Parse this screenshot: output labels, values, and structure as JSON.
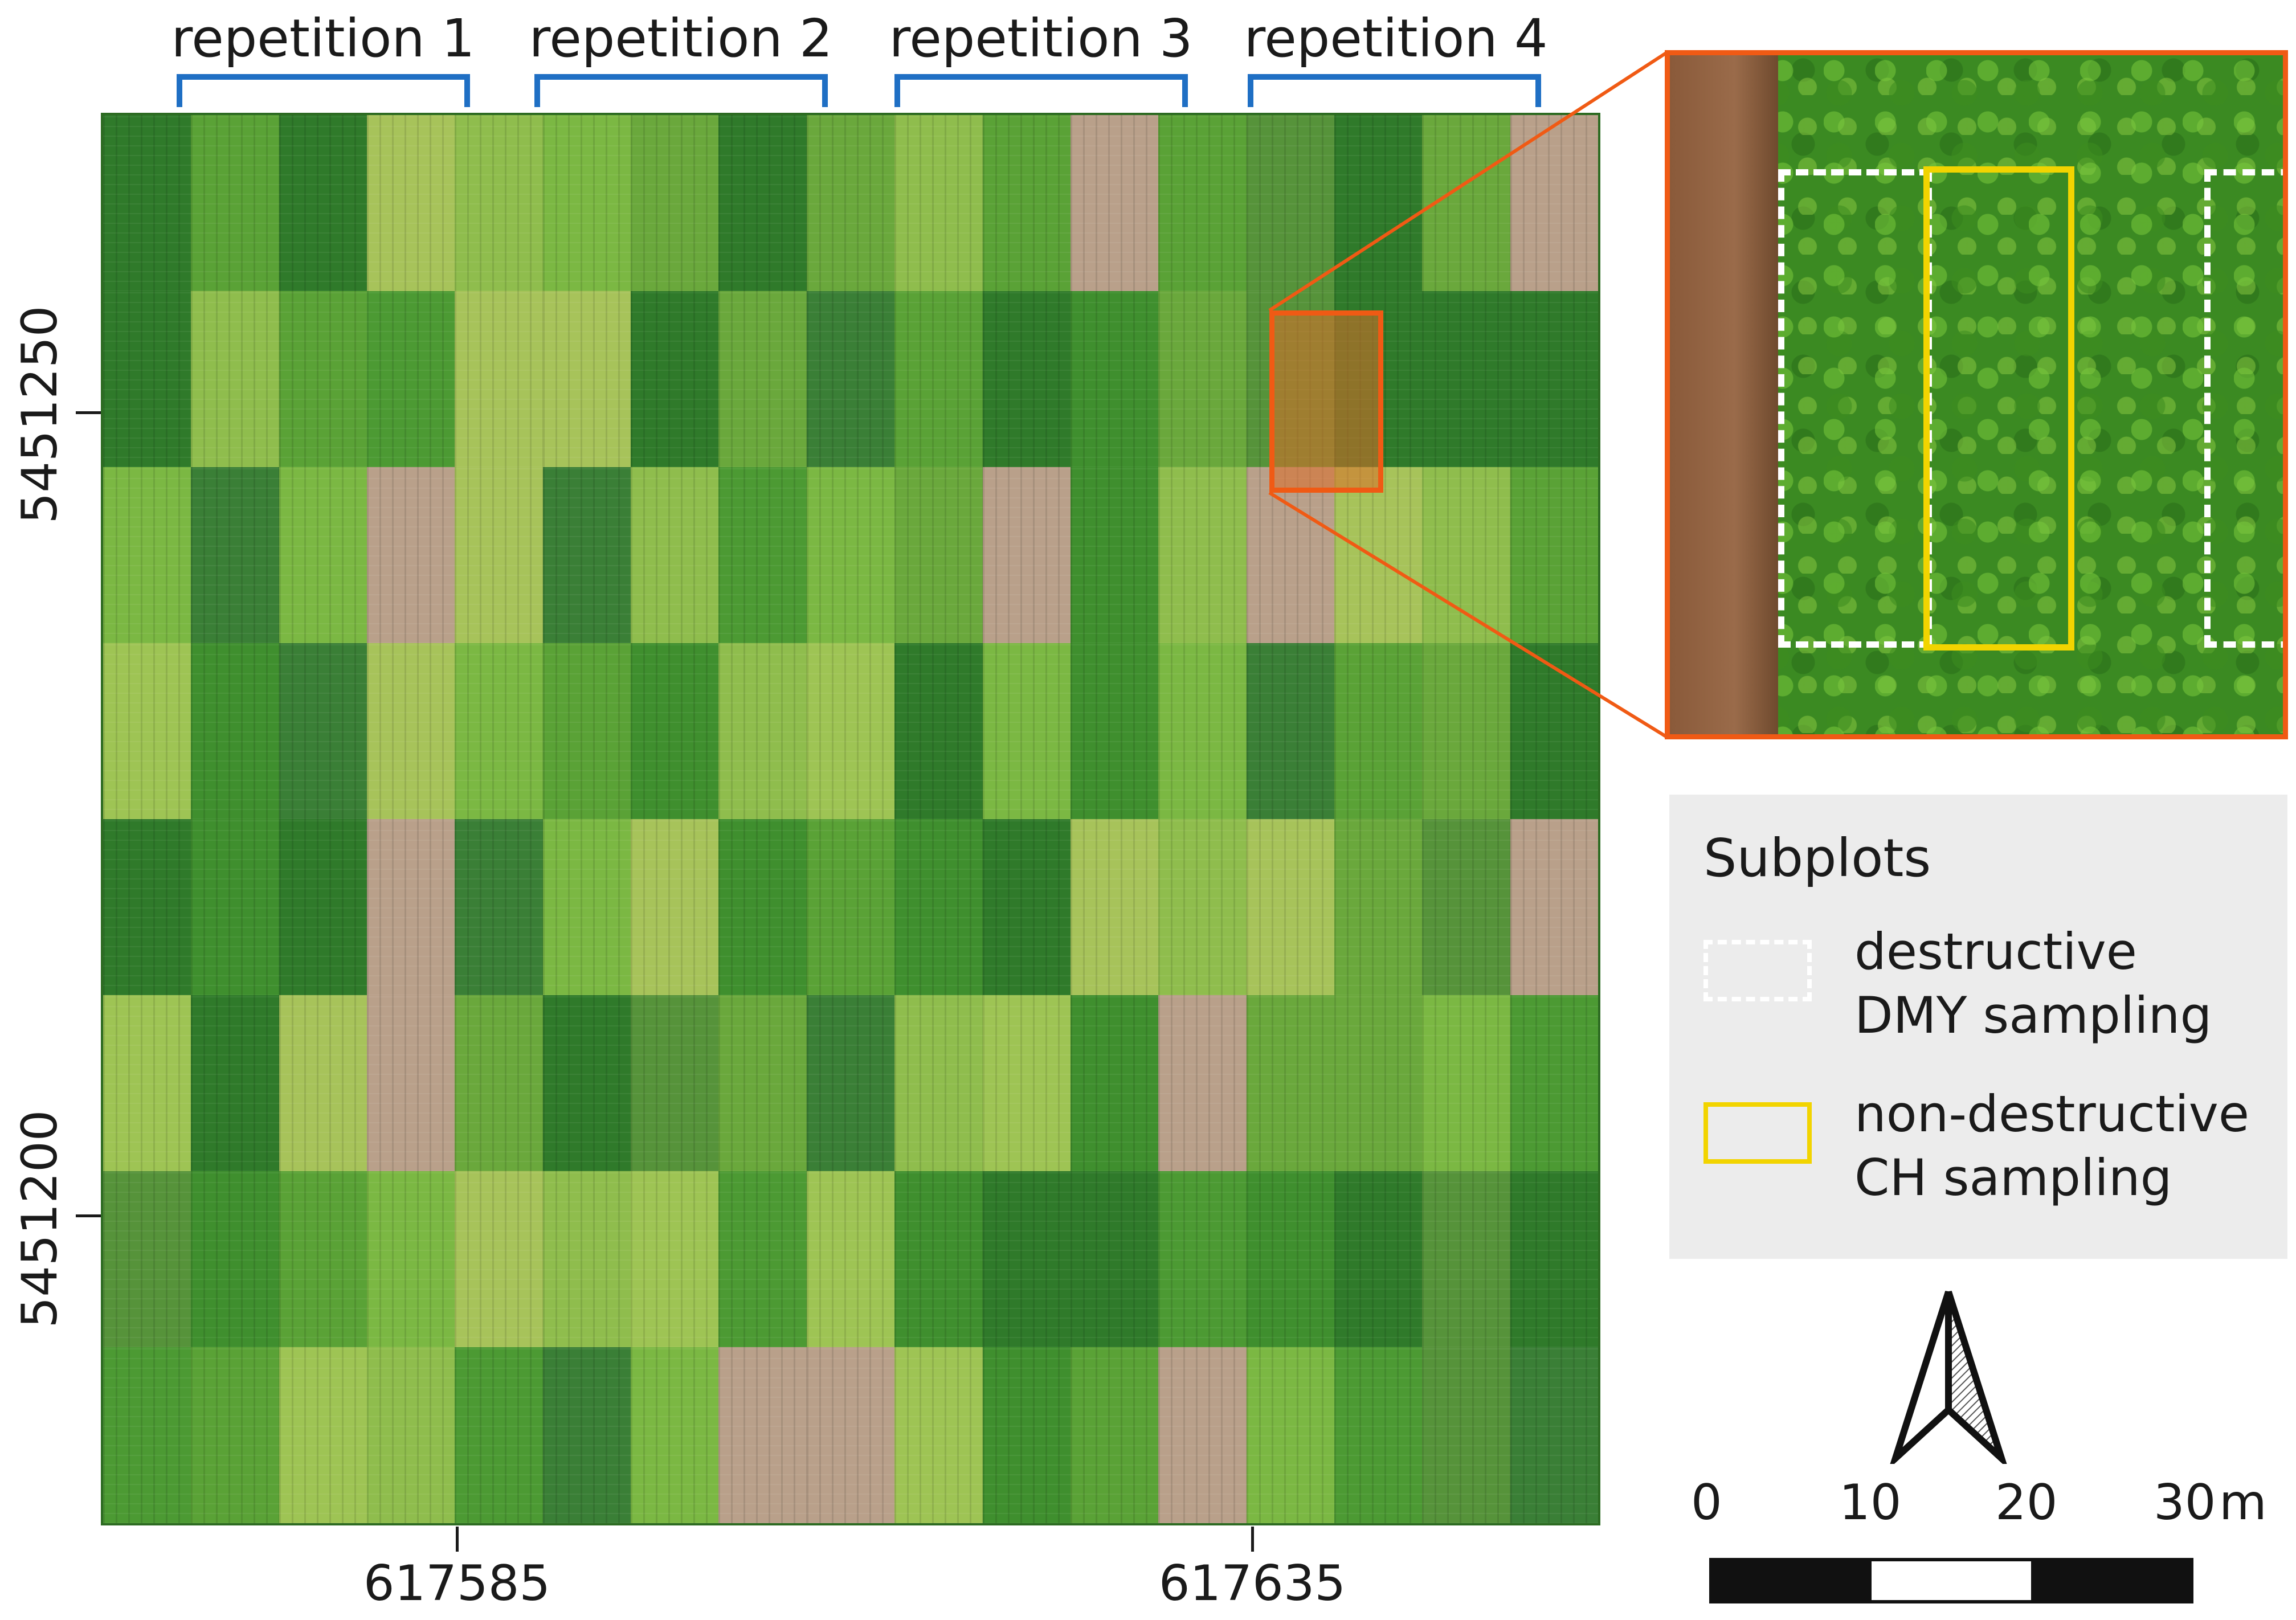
{
  "repetitions": [
    "repetition 1",
    "repetition 2",
    "repetition 3",
    "repetition 4"
  ],
  "axes": {
    "x_ticks": [
      "617585",
      "617635"
    ],
    "y_ticks": [
      "5451250",
      "5451200"
    ]
  },
  "legend": {
    "title": "Subplots",
    "items": [
      {
        "line1": "destructive",
        "line2": "DMY sampling",
        "color": "#ffffff",
        "style": "dashed"
      },
      {
        "line1": "non-destructive",
        "line2": "CH sampling",
        "color": "#f2d400",
        "style": "solid"
      }
    ]
  },
  "scale": {
    "labels": [
      "0",
      "10",
      "20",
      "30"
    ],
    "unit": "m"
  },
  "colors": {
    "bracket": "#1f6fc4",
    "highlight": "#f05a14",
    "dmy": "#ffffff",
    "ch": "#f2d400"
  },
  "north_arrow": "north-arrow-icon"
}
